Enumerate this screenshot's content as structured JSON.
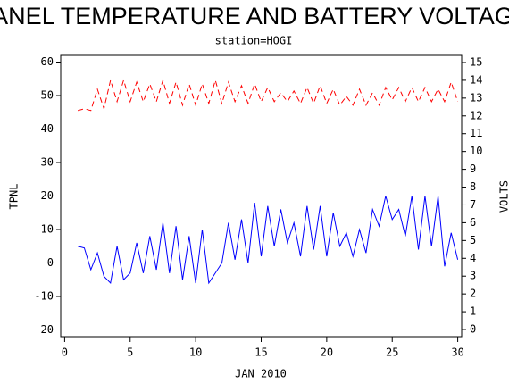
{
  "chart_data": {
    "type": "line",
    "title": "PANEL TEMPERATURE AND BATTERY VOLTAGE",
    "subtitle": "station=HOGI",
    "x_label": "JAN 2010",
    "y_label": "TPNL",
    "y2_label": "VOLTS",
    "x": [
      1,
      1.5,
      2,
      2.5,
      3,
      3.5,
      4,
      4.5,
      5,
      5.5,
      6,
      6.5,
      7,
      7.5,
      8,
      8.5,
      9,
      9.5,
      10,
      10.5,
      11,
      11.5,
      12,
      12.5,
      13,
      13.5,
      14,
      14.5,
      15,
      15.5,
      16,
      16.5,
      17,
      17.5,
      18,
      18.5,
      19,
      19.5,
      20,
      20.5,
      21,
      21.5,
      22,
      22.5,
      23,
      23.5,
      24,
      24.5,
      25,
      25.5,
      26,
      26.5,
      27,
      27.5,
      28,
      28.5,
      29,
      29.5,
      30
    ],
    "series": [
      {
        "name": "TPNL",
        "color": "#0000ff",
        "axis": "y",
        "values": [
          5,
          4.5,
          -2,
          3,
          -4,
          -6,
          5,
          -5,
          -3,
          6,
          -3,
          8,
          -2,
          12,
          -3,
          11,
          -5,
          8,
          -6,
          10,
          -6,
          -3,
          0,
          12,
          1,
          13,
          0,
          18,
          2,
          17,
          5,
          16,
          6,
          12,
          2,
          17,
          4,
          17,
          2,
          15,
          5,
          9,
          2,
          10,
          3,
          16,
          11,
          20,
          13,
          16,
          8,
          20,
          4,
          20,
          5,
          20,
          -1,
          9,
          1
        ]
      },
      {
        "name": "VOLTS",
        "color": "#ff0000",
        "axis": "y2",
        "dashed": true,
        "values": [
          12.3,
          12.4,
          12.3,
          13.5,
          12.4,
          14,
          12.8,
          14,
          12.8,
          13.9,
          12.8,
          13.8,
          12.8,
          14,
          12.7,
          13.9,
          12.6,
          13.8,
          12.6,
          13.8,
          12.7,
          14,
          12.7,
          13.9,
          12.8,
          13.7,
          12.7,
          13.8,
          12.8,
          13.6,
          12.8,
          13.3,
          12.8,
          13.4,
          12.7,
          13.6,
          12.7,
          13.7,
          12.7,
          13.5,
          12.6,
          13.1,
          12.6,
          13.5,
          12.6,
          13.3,
          12.6,
          13.6,
          12.9,
          13.6,
          12.8,
          13.6,
          12.8,
          13.6,
          12.8,
          13.5,
          12.8,
          13.9,
          12.8
        ]
      }
    ],
    "xlim": [
      -0.3,
      30.3
    ],
    "xticks": [
      0,
      5,
      10,
      15,
      20,
      25,
      30
    ],
    "ylim": [
      -22,
      62
    ],
    "yticks": [
      -20,
      -10,
      0,
      10,
      20,
      30,
      40,
      50,
      60
    ],
    "y2lim": [
      -0.4,
      15.4
    ],
    "y2ticks": [
      0,
      1,
      2,
      3,
      4,
      5,
      6,
      7,
      8,
      9,
      10,
      11,
      12,
      13,
      14,
      15
    ]
  }
}
